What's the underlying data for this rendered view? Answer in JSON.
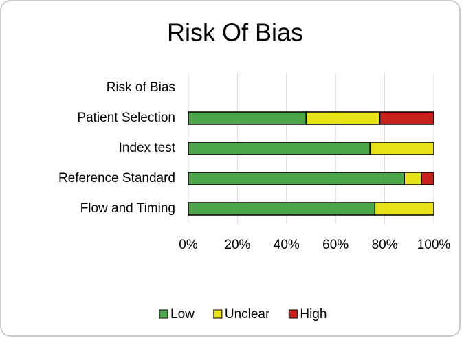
{
  "chart_data": {
    "type": "stacked_barh",
    "title": "Risk Of Bias",
    "categories": [
      "Risk of Bias",
      "Patient Selection",
      "Index test",
      "Reference Standard",
      "Flow and Timing"
    ],
    "series": [
      {
        "name": "Low",
        "color": "#4ea64a",
        "values": [
          null,
          48,
          74,
          88,
          76
        ]
      },
      {
        "name": "Unclear",
        "color": "#e8e21a",
        "values": [
          null,
          30,
          26,
          7,
          24
        ]
      },
      {
        "name": "High",
        "color": "#c8201c",
        "values": [
          null,
          22,
          0,
          5,
          0
        ]
      }
    ],
    "xlim": [
      0,
      100
    ],
    "xticks": [
      {
        "value": 0,
        "label": "0%"
      },
      {
        "value": 20,
        "label": "20%"
      },
      {
        "value": 40,
        "label": "40%"
      },
      {
        "value": 60,
        "label": "60%"
      },
      {
        "value": 80,
        "label": "80%"
      },
      {
        "value": 100,
        "label": "100%"
      }
    ],
    "grid": true,
    "legend": "bottom"
  }
}
